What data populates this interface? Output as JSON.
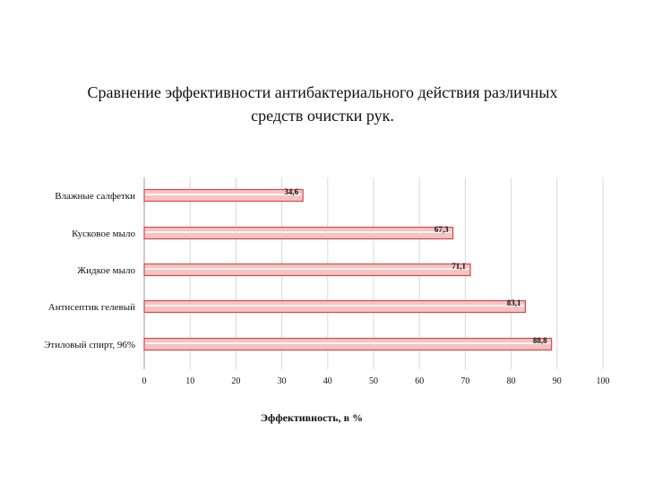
{
  "slide": {
    "title_lines": [
      "Сравнение эффективности антибактериального действия различных",
      "средств очистки рук."
    ]
  },
  "chart_data": {
    "type": "bar",
    "orientation": "horizontal",
    "categories": [
      "Влажные салфетки",
      "Кусковое мыло",
      "Жидкое мыло",
      "Антисептик гелевый",
      "Этиловый спирт, 96%"
    ],
    "values": [
      34.6,
      67.3,
      71.1,
      83.1,
      88.8
    ],
    "value_labels": [
      "34,6",
      "67,3",
      "71,1",
      "83,1",
      "88,8"
    ],
    "xlabel": "Эффективность, в %",
    "ylabel": "",
    "xlim": [
      0,
      100
    ],
    "xticks": [
      0,
      10,
      20,
      30,
      40,
      50,
      60,
      70,
      80,
      90,
      100
    ],
    "grid": true,
    "legend": "none",
    "colors": {
      "bar_fill": "#f6c3c3",
      "bar_stroke": "#d24a4a",
      "grid": "#d9d9d9",
      "axis": "#9a9a9a"
    }
  }
}
